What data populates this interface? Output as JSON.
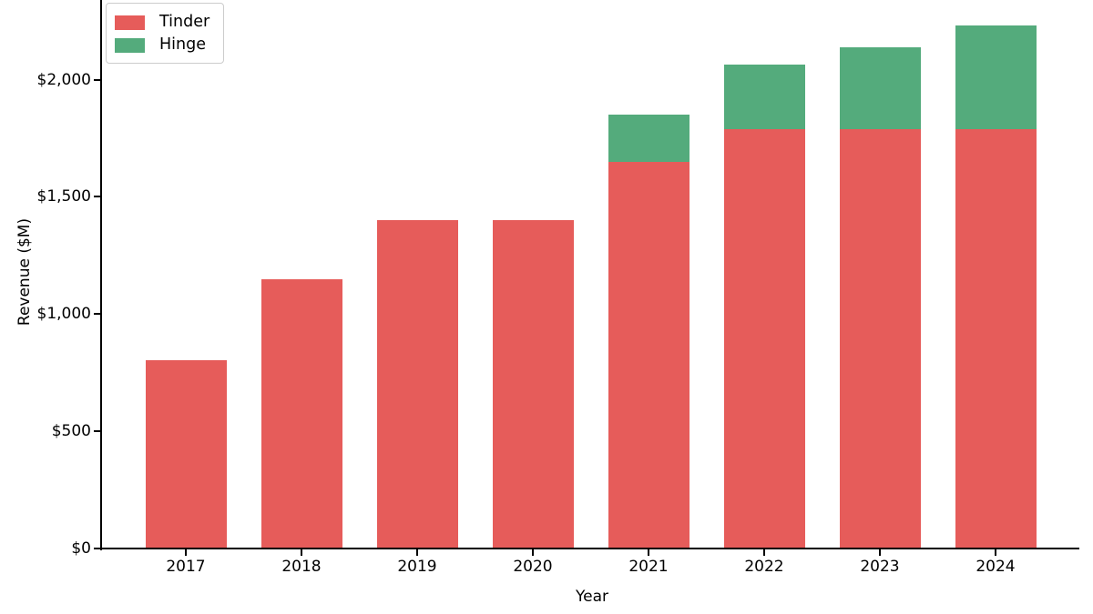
{
  "chart_data": {
    "type": "bar",
    "stacked": true,
    "title": "",
    "xlabel": "Year",
    "ylabel": "Revenue ($M)",
    "categories": [
      "2017",
      "2018",
      "2019",
      "2020",
      "2021",
      "2022",
      "2023",
      "2024"
    ],
    "series": [
      {
        "name": "Tinder",
        "color": "#e65c5a",
        "values": [
          805,
          1150,
          1400,
          1400,
          1650,
          1790,
          1790,
          1790
        ]
      },
      {
        "name": "Hinge",
        "color": "#54ab7c",
        "values": [
          0,
          0,
          0,
          0,
          200,
          275,
          350,
          440
        ]
      }
    ],
    "y_ticks": [
      0,
      500,
      1000,
      1500,
      2000
    ],
    "y_tick_labels": [
      "$0",
      "$500",
      "$1,000",
      "$1,500",
      "$2,000"
    ],
    "ylim": [
      0,
      2340
    ],
    "legend_position": "upper left",
    "grid": false,
    "background": "#ffffff",
    "axis_color": "#000000"
  }
}
